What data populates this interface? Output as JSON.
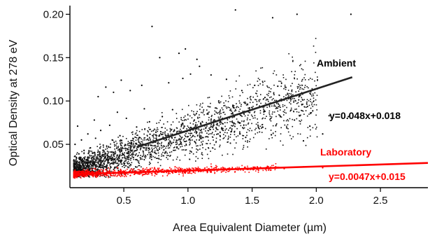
{
  "chart_data": {
    "type": "scatter",
    "xlabel": "Area Equivalent Diameter (µm)",
    "ylabel": "Optical Density at 278 eV",
    "xlim": [
      0.08,
      2.87
    ],
    "ylim": [
      0.0,
      0.21
    ],
    "x_ticks": [
      {
        "value": 0.5,
        "label": "0.5"
      },
      {
        "value": 1.0,
        "label": "1.0"
      },
      {
        "value": 1.5,
        "label": "1.5"
      },
      {
        "value": 2.0,
        "label": "2.0"
      },
      {
        "value": 2.5,
        "label": "2.5"
      }
    ],
    "y_ticks": [
      {
        "value": 0.05,
        "label": "0.05"
      },
      {
        "value": 0.1,
        "label": "0.10"
      },
      {
        "value": 0.15,
        "label": "0.15"
      },
      {
        "value": 0.2,
        "label": "0.20"
      }
    ],
    "grid": false,
    "series": [
      {
        "name": "Ambient",
        "color": "#000000",
        "points": [
          [
            1.37,
            0.205
          ],
          [
            1.85,
            0.2
          ],
          [
            2.27,
            0.2
          ],
          [
            0.72,
            0.186
          ],
          [
            1.66,
            0.196
          ],
          [
            0.98,
            0.16
          ],
          [
            0.93,
            0.155
          ],
          [
            1.07,
            0.148
          ],
          [
            0.78,
            0.15
          ],
          [
            1.09,
            0.14
          ],
          [
            1.02,
            0.131
          ],
          [
            0.96,
            0.126
          ],
          [
            1.52,
            0.118
          ],
          [
            1.7,
            0.117
          ],
          [
            1.3,
            0.125
          ],
          [
            1.42,
            0.112
          ],
          [
            1.6,
            0.104
          ],
          [
            1.88,
            0.108
          ],
          [
            1.18,
            0.13
          ],
          [
            0.85,
            0.121
          ],
          [
            0.64,
            0.118
          ],
          [
            0.55,
            0.112
          ],
          [
            0.48,
            0.124
          ],
          [
            0.42,
            0.11
          ],
          [
            0.36,
            0.116
          ],
          [
            0.3,
            0.105
          ],
          [
            1.24,
            0.1
          ],
          [
            1.35,
            0.095
          ],
          [
            1.48,
            0.092
          ],
          [
            1.6,
            0.088
          ],
          [
            1.72,
            0.082
          ],
          [
            1.83,
            0.078
          ],
          [
            1.77,
            0.069
          ],
          [
            1.95,
            0.071
          ],
          [
            2.1,
            0.083
          ],
          [
            1.9,
            0.054
          ],
          [
            1.25,
            0.06
          ],
          [
            1.4,
            0.075
          ],
          [
            1.15,
            0.085
          ],
          [
            1.05,
            0.078
          ],
          [
            0.95,
            0.072
          ],
          [
            0.88,
            0.09
          ],
          [
            0.8,
            0.082
          ],
          [
            0.7,
            0.076
          ],
          [
            0.66,
            0.091
          ],
          [
            0.6,
            0.07
          ],
          [
            0.52,
            0.08
          ],
          [
            0.45,
            0.087
          ],
          [
            0.39,
            0.072
          ],
          [
            0.32,
            0.066
          ],
          [
            0.27,
            0.078
          ],
          [
            0.22,
            0.062
          ],
          [
            0.17,
            0.055
          ],
          [
            0.14,
            0.071
          ],
          [
            0.12,
            0.05
          ],
          [
            2.25,
            0.082
          ],
          [
            2.05,
            0.062
          ],
          [
            1.55,
            0.069
          ],
          [
            1.65,
            0.061
          ],
          [
            1.45,
            0.058
          ],
          [
            1.1,
            0.066
          ],
          [
            1.0,
            0.059
          ],
          [
            0.9,
            0.061
          ],
          [
            0.75,
            0.064
          ],
          [
            0.62,
            0.058
          ],
          [
            0.56,
            0.052
          ],
          [
            0.47,
            0.06
          ],
          [
            0.41,
            0.055
          ],
          [
            0.34,
            0.049
          ],
          [
            0.28,
            0.057
          ],
          [
            0.24,
            0.046
          ],
          [
            0.19,
            0.043
          ],
          [
            0.15,
            0.039
          ],
          [
            0.13,
            0.035
          ],
          [
            0.11,
            0.031
          ]
        ],
        "fit": {
          "slope": 0.048,
          "intercept": 0.018,
          "x_range": [
            0.6,
            2.28
          ],
          "label": "y=0.048x+0.018"
        }
      },
      {
        "name": "Laboratory",
        "color": "#ff0000",
        "points": [
          [
            0.12,
            0.015
          ],
          [
            0.15,
            0.018
          ],
          [
            0.18,
            0.013
          ],
          [
            0.21,
            0.02
          ],
          [
            0.24,
            0.016
          ],
          [
            0.27,
            0.022
          ],
          [
            0.3,
            0.017
          ],
          [
            0.33,
            0.014
          ],
          [
            0.36,
            0.021
          ],
          [
            0.39,
            0.019
          ],
          [
            0.42,
            0.016
          ],
          [
            0.45,
            0.023
          ],
          [
            0.48,
            0.018
          ],
          [
            0.51,
            0.015
          ],
          [
            0.55,
            0.02
          ],
          [
            0.6,
            0.017
          ],
          [
            0.65,
            0.022
          ],
          [
            0.7,
            0.019
          ],
          [
            0.75,
            0.016
          ],
          [
            0.8,
            0.021
          ],
          [
            0.85,
            0.018
          ],
          [
            0.9,
            0.024
          ],
          [
            0.95,
            0.02
          ],
          [
            1.0,
            0.017
          ],
          [
            1.08,
            0.022
          ],
          [
            1.15,
            0.019
          ],
          [
            1.22,
            0.023
          ],
          [
            1.3,
            0.02
          ],
          [
            1.38,
            0.021
          ],
          [
            1.45,
            0.022
          ],
          [
            1.55,
            0.02
          ],
          [
            1.65,
            0.023
          ],
          [
            1.75,
            0.022
          ],
          [
            1.9,
            0.024
          ],
          [
            2.05,
            0.023
          ]
        ],
        "fit": {
          "slope": 0.0047,
          "intercept": 0.015,
          "x_range": [
            0.12,
            2.9
          ],
          "label": "y=0.0047x+0.015"
        }
      }
    ]
  }
}
